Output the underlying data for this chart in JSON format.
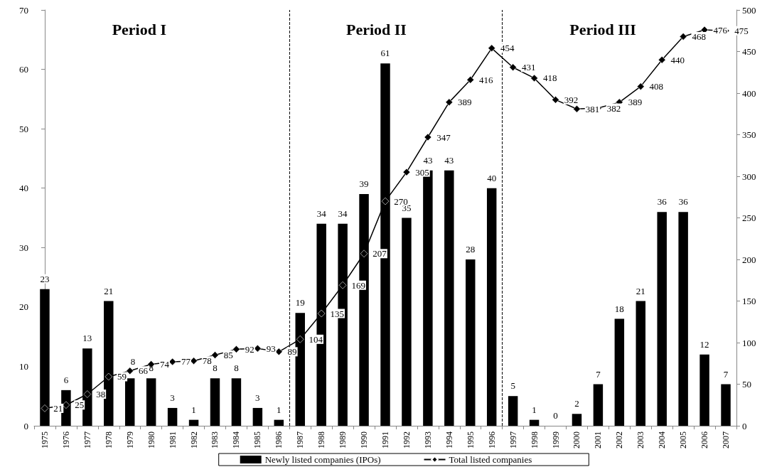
{
  "chart_data": {
    "type": "bar",
    "categories": [
      "1975",
      "1976",
      "1977",
      "1978",
      "1979",
      "1980",
      "1981",
      "1982",
      "1983",
      "1984",
      "1985",
      "1986",
      "1987",
      "1988",
      "1989",
      "1990",
      "1991",
      "1992",
      "1993",
      "1994",
      "1995",
      "1996",
      "1997",
      "1998",
      "1999",
      "2000",
      "2001",
      "2002",
      "2003",
      "2004",
      "2005",
      "2006",
      "2007"
    ],
    "series": [
      {
        "name": "Newly listed companies (IPOs)",
        "color": "#000000",
        "values": [
          23,
          6,
          13,
          21,
          8,
          8,
          3,
          1,
          8,
          8,
          3,
          1,
          19,
          34,
          34,
          39,
          61,
          35,
          43,
          43,
          28,
          40,
          5,
          1,
          0,
          2,
          7,
          18,
          21,
          36,
          36,
          12,
          7
        ]
      },
      {
        "name": "Total listed companies",
        "type": "line",
        "axis": "y2",
        "color": "#000000",
        "marker": "diamond",
        "values": [
          21,
          25,
          38,
          59,
          66,
          74,
          77,
          78,
          85,
          92,
          93,
          89,
          104,
          135,
          169,
          207,
          270,
          305,
          347,
          389,
          416,
          454,
          431,
          418,
          392,
          381,
          382,
          389,
          408,
          440,
          468,
          476,
          475
        ]
      }
    ],
    "ylim": [
      0,
      70
    ],
    "yticks": [
      0,
      10,
      20,
      30,
      40,
      50,
      60,
      70
    ],
    "y2lim": [
      0,
      500
    ],
    "y2ticks": [
      0,
      50,
      100,
      150,
      200,
      250,
      300,
      350,
      400,
      450,
      500
    ],
    "annotations": [
      "Period I",
      "Period II",
      "Period III"
    ],
    "data_labels": true,
    "grid": false,
    "legend": "bottom"
  }
}
